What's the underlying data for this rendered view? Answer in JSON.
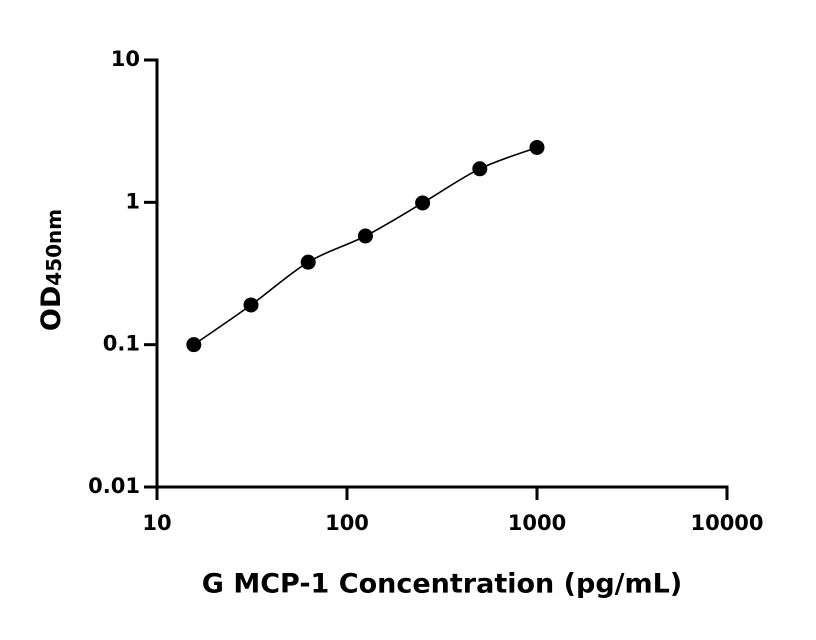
{
  "chart_data": {
    "type": "scatter",
    "xlabel": "G MCP-1 Concentration (pg/mL)",
    "ylabel": "OD",
    "ylabel_subscript": "450nm",
    "x": [
      15.625,
      31.25,
      62.5,
      125,
      250,
      500,
      1000
    ],
    "values": [
      0.1,
      0.19,
      0.38,
      0.58,
      0.99,
      1.72,
      2.43
    ],
    "color": "#000000",
    "xlog": true,
    "ylog": true,
    "xlim": [
      10,
      10000
    ],
    "xticks": [
      10,
      100,
      1000,
      10000
    ],
    "ylim": [
      0.01,
      10
    ],
    "yticks": [
      0.01,
      0.1,
      1,
      10
    ],
    "grid": false
  }
}
